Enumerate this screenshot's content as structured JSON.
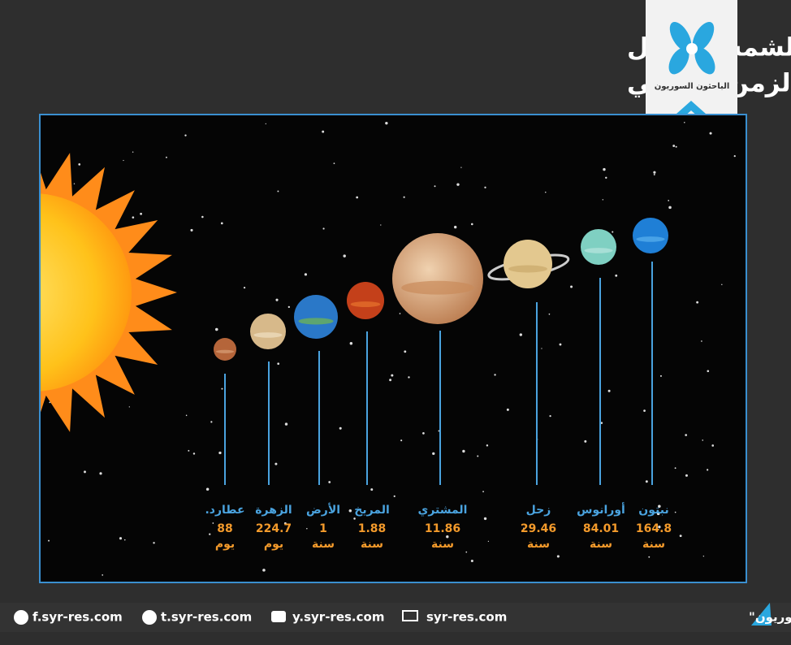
{
  "header": {
    "title_line1": "مدة دوران كواكب المجموعة الشمسية حول",
    "title_line2": "الشمس مقاسة بالزمن الأرضي",
    "logo_text": "الباحثون السوريون"
  },
  "planets": [
    {
      "name": "عطارد.",
      "value": 88,
      "unit": "يوم"
    },
    {
      "name": "الزهرة",
      "value": 224.7,
      "unit": "يوم"
    },
    {
      "name": "الأرض",
      "value": 1,
      "unit": "سنة"
    },
    {
      "name": "المريخ",
      "value": 1.88,
      "unit": "سنة"
    },
    {
      "name": "المشتري",
      "value": 11.86,
      "unit": "سنة"
    },
    {
      "name": "زحل",
      "value": 29.46,
      "unit": "سنة"
    },
    {
      "name": "أورانوس",
      "value": 84.01,
      "unit": "سنة"
    },
    {
      "name": "نبتون",
      "value": 164.8,
      "unit": "سنة"
    }
  ],
  "footer": {
    "copyright": "حقوق التصميم محفوظة لـ \"الباحثون السوريون\"",
    "site": "syr-res.com",
    "youtube": "y.syr-res.com",
    "twitter": "t.syr-res.com",
    "facebook": "f.syr-res.com"
  }
}
